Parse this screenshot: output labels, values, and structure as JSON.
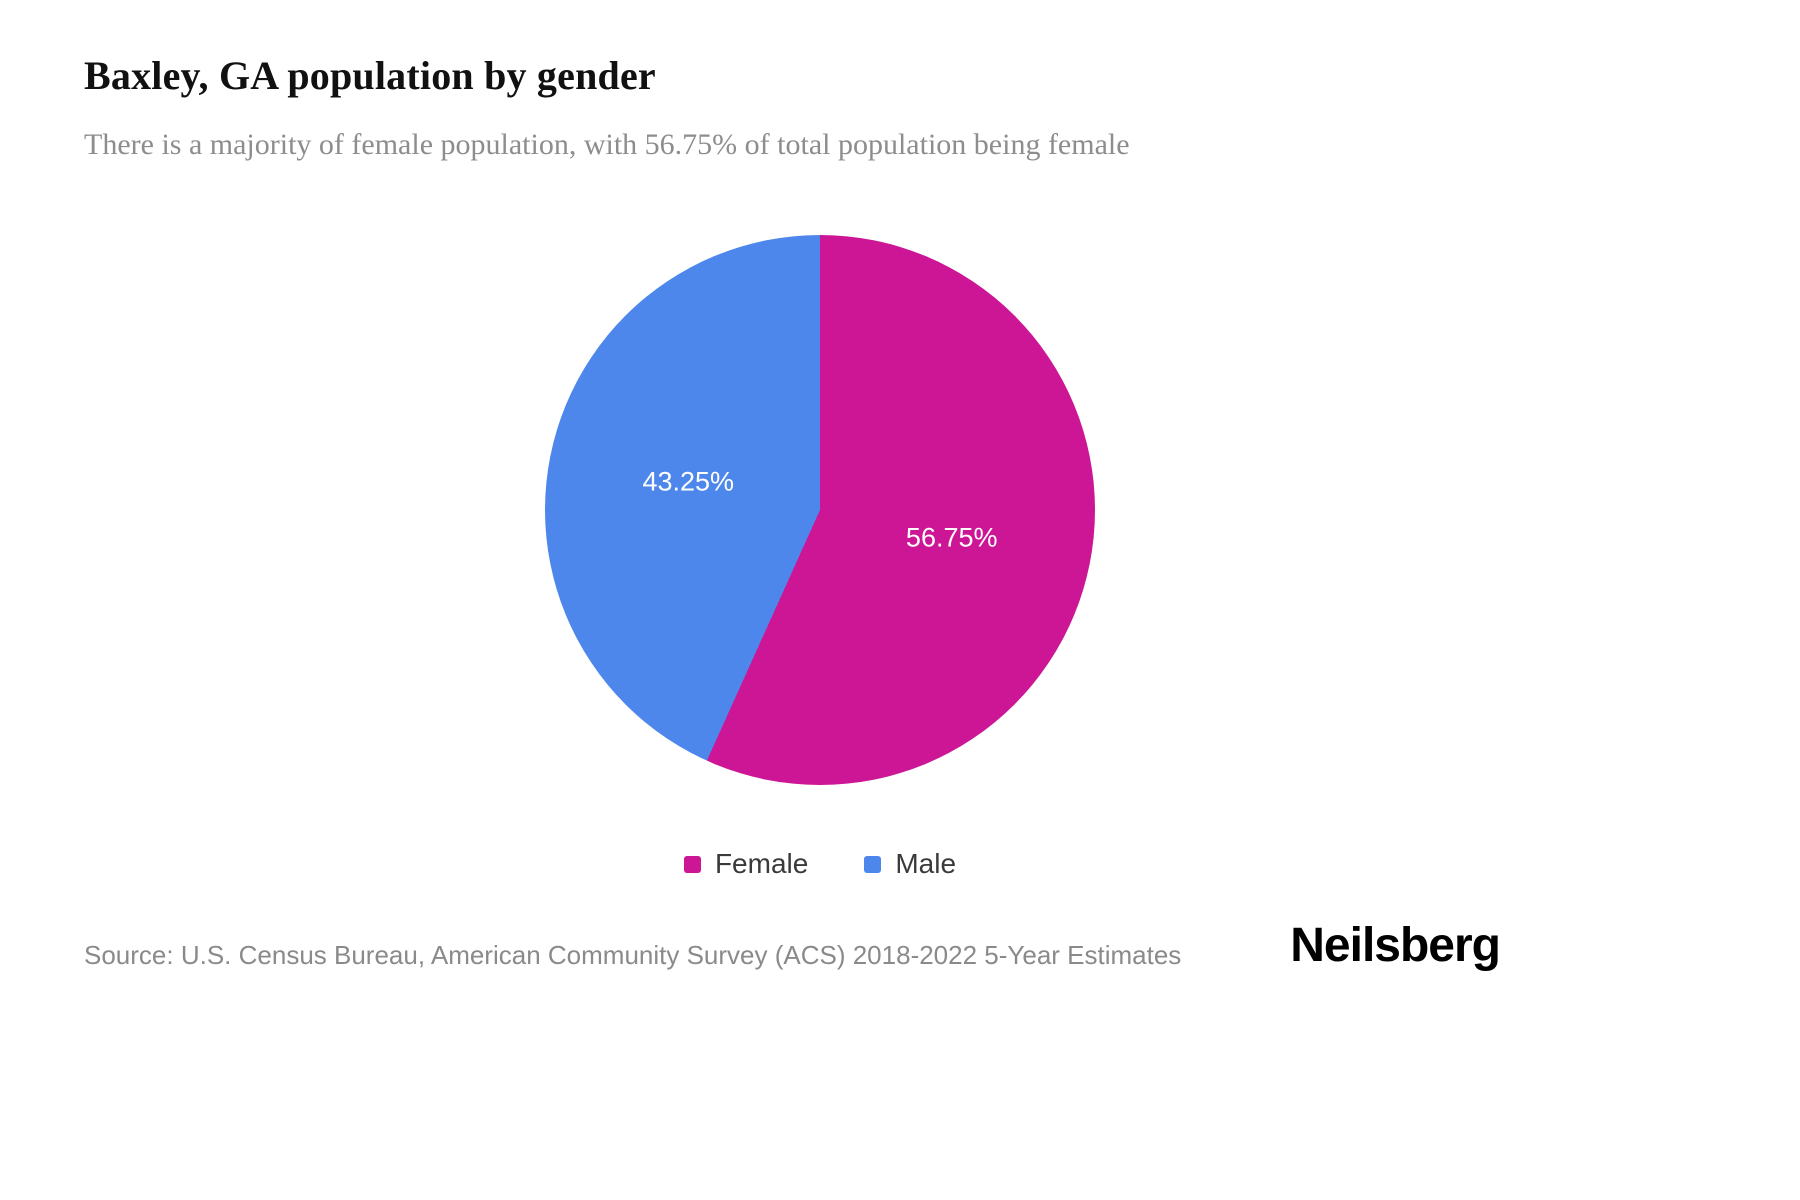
{
  "header": {
    "title": "Baxley, GA population by gender",
    "subtitle": "There is a majority of female population, with 56.75% of total population being female"
  },
  "chart_data": {
    "type": "pie",
    "title": "Baxley, GA population by gender",
    "subtitle": "There is a majority of female population, with 56.75% of total population being female",
    "start_angle_deg": 0,
    "direction": "clockwise",
    "legend_position": "bottom",
    "slices": [
      {
        "label": "Female",
        "value": 56.75,
        "display": "56.75%",
        "color": "#cc1695"
      },
      {
        "label": "Male",
        "value": 43.25,
        "display": "43.25%",
        "color": "#4e87ec"
      }
    ]
  },
  "footer": {
    "source": "Source: U.S. Census Bureau, American Community Survey (ACS) 2018-2022 5-Year Estimates",
    "brand": "Neilsberg"
  }
}
